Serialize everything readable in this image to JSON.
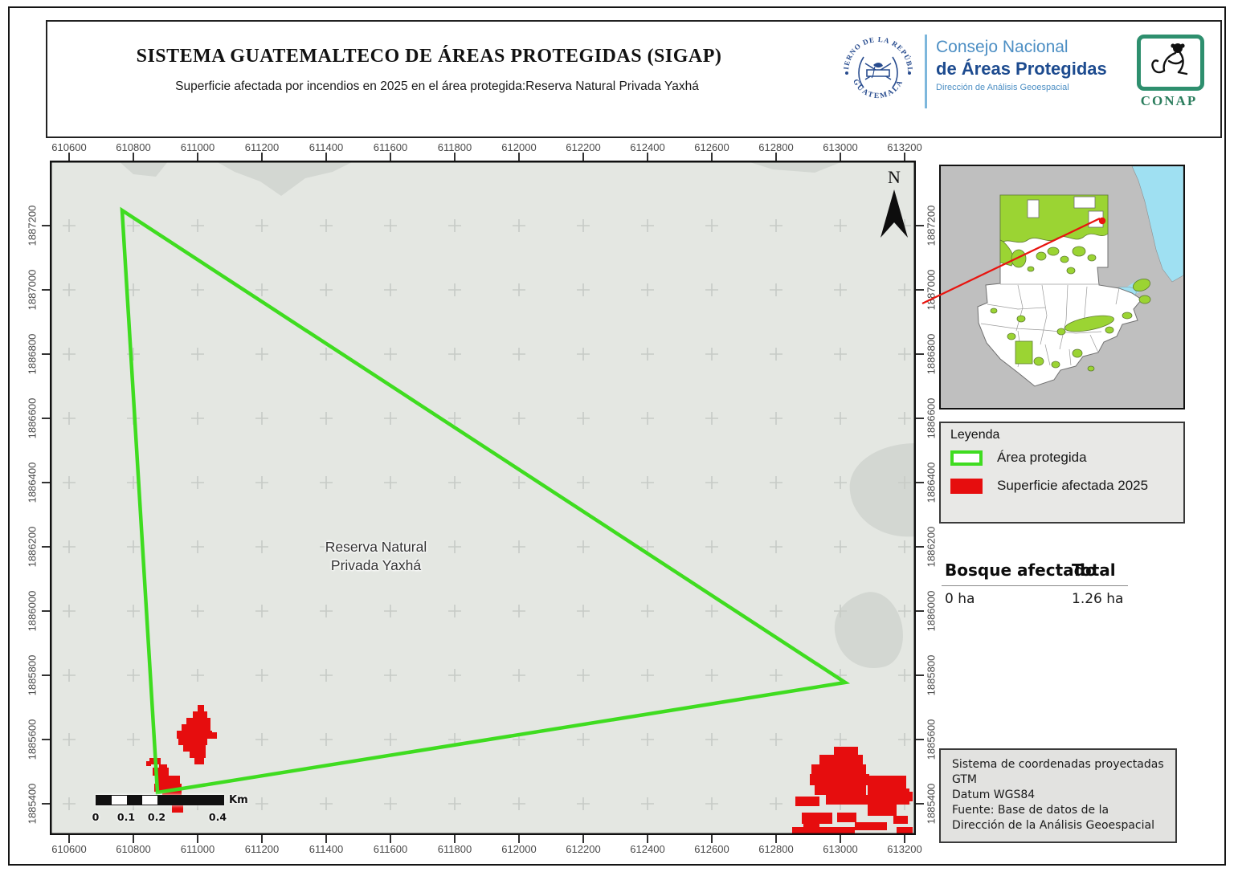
{
  "header": {
    "title": "SISTEMA GUATEMALTECO DE ÁREAS PROTEGIDAS  (SIGAP)",
    "subtitle": "Superficie afectada por incendios en 2025 en el área protegida:Reserva Natural Privada Yaxhá"
  },
  "logos": {
    "seal_top": "GOBIERNO DE LA REPÚBLICA",
    "seal_bottom": "GUATEMALA",
    "org_line1": "Consejo Nacional",
    "org_line2": "de Áreas Protegidas",
    "org_line3": "Dirección de Análisis Geoespacial",
    "conap_label": "CONAP"
  },
  "map": {
    "area_label_line1": "Reserva Natural",
    "area_label_line2": "Privada Yaxhá",
    "north_label": "N",
    "x_ticks": [
      "610600",
      "610800",
      "611000",
      "611200",
      "611400",
      "611600",
      "611800",
      "612000",
      "612200",
      "612400",
      "612600",
      "612800",
      "613000",
      "613200"
    ],
    "y_ticks": [
      "1887200",
      "1887000",
      "1886800",
      "1886600",
      "1886400",
      "1886200",
      "1886000",
      "1885800",
      "1885600",
      "1885400"
    ]
  },
  "scalebar": {
    "labels": [
      "0",
      "0.1",
      "0.2",
      "0.4"
    ],
    "unit": "Km"
  },
  "legend": {
    "title": "Leyenda",
    "items": [
      {
        "label": "Área protegida",
        "swatch": "green-outline"
      },
      {
        "label": "Superficie afectada 2025",
        "swatch": "red-fill"
      }
    ]
  },
  "stats": {
    "header_left": "Bosque afectado",
    "header_right": "Total",
    "value_left": "0 ha",
    "value_right": "1.26 ha"
  },
  "info_box": {
    "lines": [
      "Sistema de coordenadas proyectadas",
      "GTM",
      "Datum WGS84",
      "Fuente: Base de datos de la",
      "Dirección de la Análisis Geoespacial"
    ]
  },
  "colors": {
    "protected_outline": "#3fdc20",
    "affected_fill": "#e60d0e",
    "inset_protected_green": "#9bd433",
    "inset_water": "#9fe0f2",
    "map_background": "#e4e7e2"
  }
}
